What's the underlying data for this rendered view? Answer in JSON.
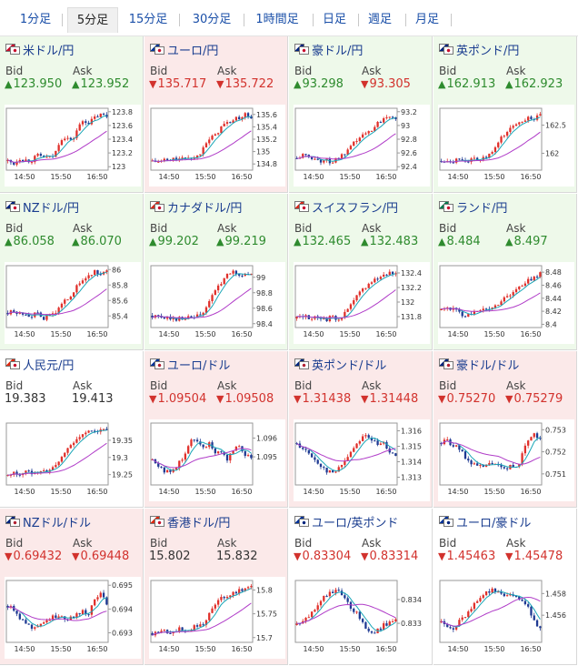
{
  "tabs": [
    "1分足",
    "5分足",
    "15分足",
    "30分足",
    "1時間足",
    "日足",
    "週足",
    "月足"
  ],
  "active_tab": "5分足",
  "labels": {
    "bid": "Bid",
    "ask": "Ask"
  },
  "colors": {
    "up": "#2e8b2e",
    "down": "#d2322d",
    "ma_fast": "#1aa6b7",
    "ma_slow": "#b03cc8"
  },
  "pairs": [
    {
      "name": "米ドル/円",
      "bid": "123.950",
      "ask": "123.952",
      "bid_dir": "up",
      "ask_dir": "up",
      "status": "up",
      "flag_colors": [
        "#c8102e",
        "#c8102e"
      ],
      "chart_data": {
        "type": "candlestick",
        "x_ticks": [
          "14:50",
          "15:50",
          "16:50"
        ],
        "y_ticks": [
          "123.8",
          "123.6",
          "123.4",
          "123.2",
          "123"
        ],
        "ylim": [
          122.95,
          123.85
        ],
        "trend": [
          0.1,
          0.05,
          0.15,
          0.12,
          0.1,
          0.2,
          0.18,
          0.15,
          0.2,
          0.5,
          0.55,
          0.45,
          0.7,
          0.85,
          0.8,
          0.9,
          0.95,
          0.92
        ]
      }
    },
    {
      "name": "ユーロ/円",
      "bid": "135.717",
      "ask": "135.722",
      "bid_dir": "down",
      "ask_dir": "down",
      "status": "down",
      "flag_colors": [
        "#003399",
        "#c8102e"
      ],
      "chart_data": {
        "type": "candlestick",
        "x_ticks": [
          "14:50",
          "15:50",
          "16:50"
        ],
        "y_ticks": [
          "135.6",
          "135.4",
          "135.2",
          "135",
          "134.8"
        ],
        "ylim": [
          134.7,
          135.7
        ],
        "trend": [
          0.1,
          0.08,
          0.12,
          0.1,
          0.15,
          0.12,
          0.18,
          0.15,
          0.2,
          0.45,
          0.5,
          0.6,
          0.75,
          0.8,
          0.85,
          0.9,
          0.95,
          0.9
        ]
      }
    },
    {
      "name": "豪ドル/円",
      "bid": "93.298",
      "ask": "93.305",
      "bid_dir": "up",
      "ask_dir": "down",
      "status": "up",
      "flag_colors": [
        "#00247d",
        "#c8102e"
      ],
      "chart_data": {
        "type": "candlestick",
        "x_ticks": [
          "14:50",
          "15:50",
          "16:50"
        ],
        "y_ticks": [
          "93.2",
          "93",
          "92.8",
          "92.6",
          "92.4"
        ],
        "ylim": [
          92.35,
          93.25
        ],
        "trend": [
          0.15,
          0.2,
          0.18,
          0.15,
          0.1,
          0.12,
          0.08,
          0.15,
          0.2,
          0.3,
          0.45,
          0.55,
          0.6,
          0.7,
          0.8,
          0.9,
          0.95,
          0.9
        ]
      }
    },
    {
      "name": "英ポンド/円",
      "bid": "162.913",
      "ask": "162.923",
      "bid_dir": "up",
      "ask_dir": "up",
      "status": "up",
      "flag_colors": [
        "#00247d",
        "#c8102e"
      ],
      "chart_data": {
        "type": "candlestick",
        "x_ticks": [
          "14:50",
          "15:50",
          "16:50"
        ],
        "y_ticks": [
          "162.5",
          "162"
        ],
        "ylim": [
          161.7,
          162.8
        ],
        "trend": [
          0.1,
          0.12,
          0.1,
          0.15,
          0.12,
          0.1,
          0.15,
          0.12,
          0.2,
          0.25,
          0.5,
          0.6,
          0.7,
          0.8,
          0.85,
          0.9,
          0.88,
          0.92
        ]
      }
    },
    {
      "name": "NZドル/円",
      "bid": "86.058",
      "ask": "86.070",
      "bid_dir": "up",
      "ask_dir": "up",
      "status": "up",
      "flag_colors": [
        "#00247d",
        "#c8102e"
      ],
      "chart_data": {
        "type": "candlestick",
        "x_ticks": [
          "14:50",
          "15:50",
          "16:50"
        ],
        "y_ticks": [
          "86",
          "85.8",
          "85.6",
          "85.4"
        ],
        "ylim": [
          85.25,
          86.05
        ],
        "trend": [
          0.2,
          0.22,
          0.18,
          0.2,
          0.15,
          0.18,
          0.1,
          0.15,
          0.2,
          0.3,
          0.45,
          0.55,
          0.7,
          0.8,
          0.9,
          0.95,
          0.92,
          0.95
        ]
      }
    },
    {
      "name": "カナダドル/円",
      "bid": "99.202",
      "ask": "99.219",
      "bid_dir": "up",
      "ask_dir": "up",
      "status": "up",
      "flag_colors": [
        "#d52b1e",
        "#c8102e"
      ],
      "chart_data": {
        "type": "candlestick",
        "x_ticks": [
          "14:50",
          "15:50",
          "16:50"
        ],
        "y_ticks": [
          "99",
          "98.8",
          "98.6",
          "98.4"
        ],
        "ylim": [
          98.35,
          99.15
        ],
        "trend": [
          0.15,
          0.12,
          0.1,
          0.12,
          0.08,
          0.12,
          0.1,
          0.12,
          0.15,
          0.2,
          0.5,
          0.6,
          0.8,
          0.9,
          0.95,
          0.9,
          0.92,
          0.9
        ]
      }
    },
    {
      "name": "スイスフラン/円",
      "bid": "132.465",
      "ask": "132.483",
      "bid_dir": "up",
      "ask_dir": "up",
      "status": "up",
      "flag_colors": [
        "#d52b1e",
        "#c8102e"
      ],
      "chart_data": {
        "type": "candlestick",
        "x_ticks": [
          "14:50",
          "15:50",
          "16:50"
        ],
        "y_ticks": [
          "132.4",
          "132.2",
          "132",
          "131.8"
        ],
        "ylim": [
          131.65,
          132.5
        ],
        "trend": [
          0.1,
          0.15,
          0.12,
          0.1,
          0.12,
          0.08,
          0.12,
          0.1,
          0.15,
          0.3,
          0.45,
          0.6,
          0.7,
          0.8,
          0.85,
          0.9,
          0.95,
          0.92
        ]
      }
    },
    {
      "name": "ランド/円",
      "bid": "8.484",
      "ask": "8.497",
      "bid_dir": "up",
      "ask_dir": "up",
      "status": "up",
      "flag_colors": [
        "#007a4d",
        "#c8102e"
      ],
      "chart_data": {
        "type": "candlestick",
        "x_ticks": [
          "14:50",
          "15:50",
          "16:50"
        ],
        "y_ticks": [
          "8.48",
          "8.46",
          "8.44",
          "8.42",
          "8.4"
        ],
        "ylim": [
          8.395,
          8.49
        ],
        "trend": [
          0.25,
          0.3,
          0.28,
          0.2,
          0.15,
          0.22,
          0.2,
          0.25,
          0.28,
          0.3,
          0.4,
          0.5,
          0.55,
          0.65,
          0.7,
          0.8,
          0.85,
          0.95
        ]
      }
    },
    {
      "name": "人民元/円",
      "bid": "19.383",
      "ask": "19.413",
      "bid_dir": "flat",
      "ask_dir": "flat",
      "status": "flat",
      "flag_colors": [
        "#de2910",
        "#c8102e"
      ],
      "chart_data": {
        "type": "candlestick",
        "x_ticks": [
          "14:50",
          "15:50",
          "16:50"
        ],
        "y_ticks": [
          "19.35",
          "19.3",
          "19.25"
        ],
        "ylim": [
          19.22,
          19.4
        ],
        "trend": [
          0.1,
          0.15,
          0.12,
          0.18,
          0.15,
          0.2,
          0.18,
          0.2,
          0.25,
          0.4,
          0.55,
          0.7,
          0.8,
          0.85,
          0.9,
          0.95,
          0.92,
          0.95
        ]
      }
    },
    {
      "name": "ユーロ/ドル",
      "bid": "1.09504",
      "ask": "1.09508",
      "bid_dir": "down",
      "ask_dir": "down",
      "status": "down",
      "flag_colors": [
        "#003399",
        "#b22234"
      ],
      "chart_data": {
        "type": "candlestick",
        "x_ticks": [
          "14:50",
          "15:50",
          "16:50"
        ],
        "y_ticks": [
          "1.096",
          "1.095"
        ],
        "ylim": [
          1.0935,
          1.0968
        ],
        "trend": [
          0.4,
          0.3,
          0.2,
          0.15,
          0.25,
          0.4,
          0.6,
          0.8,
          0.75,
          0.6,
          0.7,
          0.5,
          0.55,
          0.4,
          0.6,
          0.65,
          0.5,
          0.45
        ]
      }
    },
    {
      "name": "英ポンド/ドル",
      "bid": "1.31438",
      "ask": "1.31448",
      "bid_dir": "down",
      "ask_dir": "down",
      "status": "down",
      "flag_colors": [
        "#00247d",
        "#b22234"
      ],
      "chart_data": {
        "type": "candlestick",
        "x_ticks": [
          "14:50",
          "15:50",
          "16:50"
        ],
        "y_ticks": [
          "1.316",
          "1.315",
          "1.314",
          "1.313"
        ],
        "ylim": [
          1.3125,
          1.3165
        ],
        "trend": [
          0.7,
          0.6,
          0.5,
          0.4,
          0.3,
          0.2,
          0.15,
          0.2,
          0.35,
          0.5,
          0.65,
          0.8,
          0.85,
          0.75,
          0.65,
          0.7,
          0.55,
          0.5
        ]
      }
    },
    {
      "name": "豪ドル/ドル",
      "bid": "0.75270",
      "ask": "0.75279",
      "bid_dir": "down",
      "ask_dir": "down",
      "status": "down",
      "flag_colors": [
        "#00247d",
        "#b22234"
      ],
      "chart_data": {
        "type": "candlestick",
        "x_ticks": [
          "14:50",
          "15:50",
          "16:50"
        ],
        "y_ticks": [
          "0.753",
          "0.752",
          "0.751"
        ],
        "ylim": [
          0.7505,
          0.7533
        ],
        "trend": [
          0.7,
          0.75,
          0.65,
          0.6,
          0.45,
          0.35,
          0.3,
          0.25,
          0.3,
          0.35,
          0.25,
          0.2,
          0.3,
          0.25,
          0.5,
          0.8,
          0.9,
          0.75
        ]
      }
    },
    {
      "name": "NZドル/ドル",
      "bid": "0.69432",
      "ask": "0.69448",
      "bid_dir": "down",
      "ask_dir": "down",
      "status": "down",
      "flag_colors": [
        "#00247d",
        "#b22234"
      ],
      "chart_data": {
        "type": "candlestick",
        "x_ticks": [
          "14:50",
          "15:50",
          "16:50"
        ],
        "y_ticks": [
          "0.695",
          "0.694",
          "0.693"
        ],
        "ylim": [
          0.6926,
          0.6952
        ],
        "trend": [
          0.6,
          0.55,
          0.4,
          0.3,
          0.2,
          0.25,
          0.3,
          0.35,
          0.4,
          0.45,
          0.35,
          0.4,
          0.45,
          0.5,
          0.45,
          0.75,
          0.85,
          0.6
        ]
      }
    },
    {
      "name": "香港ドル/円",
      "bid": "15.802",
      "ask": "15.832",
      "bid_dir": "flat",
      "ask_dir": "flat",
      "status": "down",
      "flag_colors": [
        "#de2910",
        "#c8102e"
      ],
      "chart_data": {
        "type": "candlestick",
        "x_ticks": [
          "14:50",
          "15:50",
          "16:50"
        ],
        "y_ticks": [
          "15.8",
          "15.75",
          "15.7"
        ],
        "ylim": [
          15.69,
          15.82
        ],
        "trend": [
          0.1,
          0.12,
          0.15,
          0.12,
          0.15,
          0.18,
          0.15,
          0.2,
          0.25,
          0.3,
          0.5,
          0.65,
          0.75,
          0.8,
          0.85,
          0.9,
          0.92,
          0.95
        ]
      }
    },
    {
      "name": "ユーロ/英ポンド",
      "bid": "0.83304",
      "ask": "0.83314",
      "bid_dir": "down",
      "ask_dir": "down",
      "status": "flat",
      "flag_colors": [
        "#003399",
        "#00247d"
      ],
      "chart_data": {
        "type": "candlestick",
        "x_ticks": [
          "14:50",
          "15:50",
          "16:50"
        ],
        "y_ticks": [
          "0.834",
          "0.833"
        ],
        "ylim": [
          0.8322,
          0.8348
        ],
        "trend": [
          0.25,
          0.3,
          0.4,
          0.55,
          0.7,
          0.8,
          0.85,
          0.9,
          0.75,
          0.6,
          0.5,
          0.35,
          0.2,
          0.1,
          0.15,
          0.25,
          0.3,
          0.35
        ]
      }
    },
    {
      "name": "ユーロ/豪ドル",
      "bid": "1.45463",
      "ask": "1.45478",
      "bid_dir": "down",
      "ask_dir": "down",
      "status": "flat",
      "flag_colors": [
        "#003399",
        "#00247d"
      ],
      "chart_data": {
        "type": "candlestick",
        "x_ticks": [
          "14:50",
          "15:50",
          "16:50"
        ],
        "y_ticks": [
          "1.458",
          "1.456"
        ],
        "ylim": [
          1.4535,
          1.4592
        ],
        "trend": [
          0.3,
          0.25,
          0.2,
          0.3,
          0.4,
          0.55,
          0.7,
          0.8,
          0.85,
          0.9,
          0.85,
          0.8,
          0.85,
          0.75,
          0.7,
          0.6,
          0.3,
          0.2
        ]
      }
    }
  ]
}
